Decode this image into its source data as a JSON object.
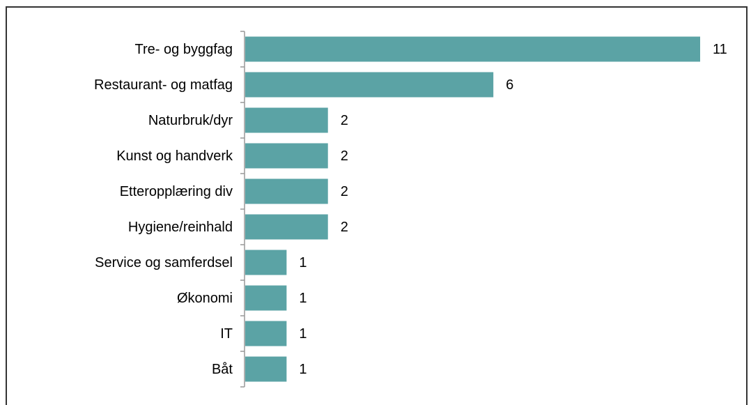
{
  "chart_data": {
    "type": "bar",
    "orientation": "horizontal",
    "categories": [
      "Tre- og byggfag",
      "Restaurant- og matfag",
      "Naturbruk/dyr",
      "Kunst og handverk",
      "Etteropplæring div",
      "Hygiene/reinhald",
      "Service og samferdsel",
      "Økonomi",
      "IT",
      "Båt"
    ],
    "values": [
      11,
      6,
      2,
      2,
      2,
      2,
      1,
      1,
      1,
      1
    ],
    "color": "#5ba3a5"
  }
}
